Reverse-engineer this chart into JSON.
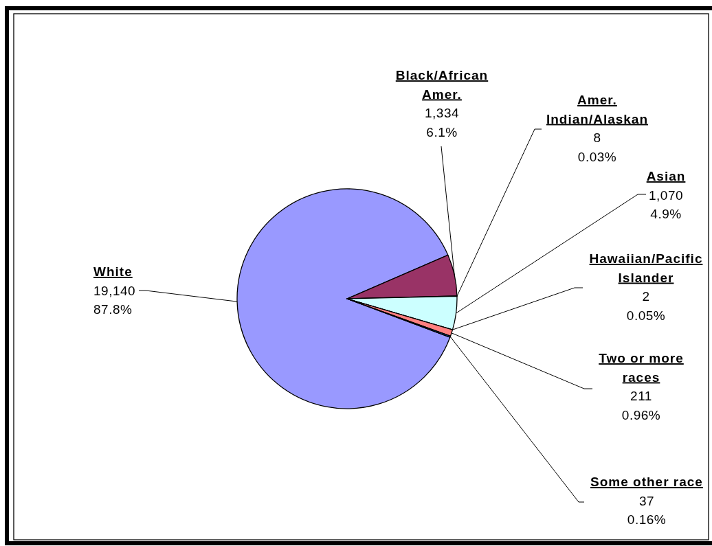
{
  "chart_data": {
    "type": "pie",
    "categories": [
      "White",
      "Black/African Amer.",
      "Amer. Indian/Alaskan",
      "Asian",
      "Hawaiian/Pacific Islander",
      "Two or more races",
      "Some other race"
    ],
    "values": [
      19140,
      1334,
      8,
      1070,
      2,
      211,
      37
    ],
    "colors": [
      "#9999ff",
      "#993366",
      "#ffffcc",
      "#ccffff",
      "#660066",
      "#ff8080",
      "#0066cc"
    ],
    "value_labels": [
      "19,140\n87.8%",
      "1,334\n6.1%",
      "8\n0.03%",
      "1,070\n4.9%",
      "2\n0.05%",
      "211\n0.96%",
      "37\n0.16%"
    ]
  }
}
